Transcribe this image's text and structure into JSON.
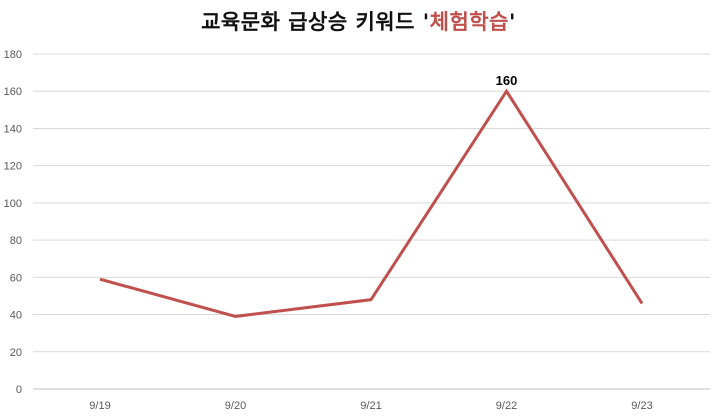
{
  "chart_data": {
    "type": "line",
    "title_prefix": "교육문화 급상승 키워드 '",
    "title_highlight": "체험학습",
    "title_suffix": "'",
    "xlabel": "",
    "ylabel": "",
    "categories": [
      "9/19",
      "9/20",
      "9/21",
      "9/22",
      "9/23"
    ],
    "series": [
      {
        "values": [
          59,
          39,
          48,
          160,
          46
        ],
        "color": "#c0504d"
      }
    ],
    "yticks": [
      0,
      20,
      40,
      60,
      80,
      100,
      120,
      140,
      160,
      180
    ],
    "ylim": [
      0,
      180
    ],
    "data_labels": [
      {
        "index": 3,
        "text": "160"
      }
    ],
    "grid": "horizontal",
    "legend": "none",
    "highlight_color": "#c0504d"
  }
}
